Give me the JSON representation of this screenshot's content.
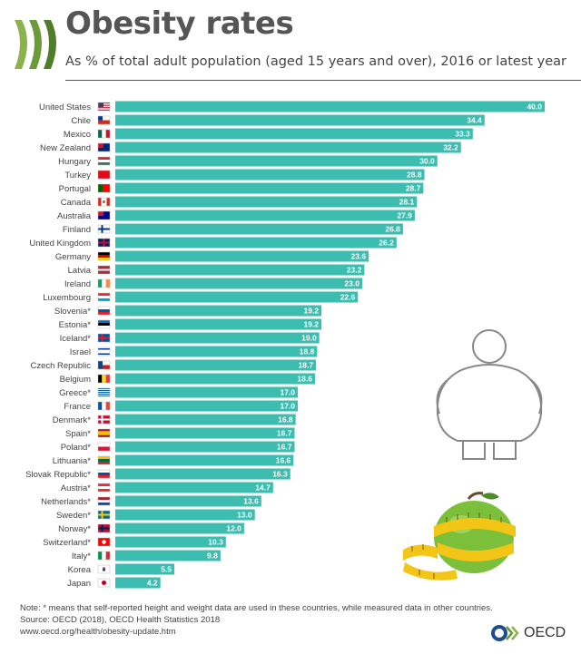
{
  "header": {
    "title": "Obesity rates",
    "subtitle": "As % of total adult population (aged 15 years and over), 2016 or latest year"
  },
  "chart_data": {
    "type": "bar",
    "orientation": "horizontal",
    "title": "Obesity rates",
    "subtitle": "As % of total adult population (aged 15 years and over), 2016 or latest year",
    "xlabel": "",
    "ylabel": "",
    "xlim": [
      0,
      40
    ],
    "grid": false,
    "legend": "none",
    "bar_color": "#3dbcb0",
    "categories": [
      "United States",
      "Chile",
      "Mexico",
      "New Zealand",
      "Hungary",
      "Turkey",
      "Portugal",
      "Canada",
      "Australia",
      "Finland",
      "United Kingdom",
      "Germany",
      "Latvia",
      "Ireland",
      "Luxembourg",
      "Slovenia*",
      "Estonia*",
      "Iceland*",
      "Israel",
      "Czech Republic",
      "Belgium",
      "Greece*",
      "France",
      "Denmark*",
      "Spain*",
      "Poland*",
      "Lithuania*",
      "Slovak Republic*",
      "Austria*",
      "Netherlands*",
      "Sweden*",
      "Norway*",
      "Switzerland*",
      "Italy*",
      "Korea",
      "Japan"
    ],
    "values": [
      40.0,
      34.4,
      33.3,
      32.2,
      30.0,
      28.8,
      28.7,
      28.1,
      27.9,
      26.8,
      26.2,
      23.6,
      23.2,
      23.0,
      22.6,
      19.2,
      19.2,
      19.0,
      18.8,
      18.7,
      18.6,
      17.0,
      17.0,
      16.8,
      16.7,
      16.7,
      16.6,
      16.3,
      14.7,
      13.6,
      13.0,
      12.0,
      10.3,
      9.8,
      5.5,
      4.2
    ],
    "value_labels": [
      "40.0",
      "34.4",
      "33.3",
      "32.2",
      "30.0",
      "28.8",
      "28.7",
      "28.1",
      "27.9",
      "26.8",
      "26.2",
      "23.6",
      "23.2",
      "23.0",
      "22.6",
      "19.2",
      "19.2",
      "19.0",
      "18.8",
      "18.7",
      "18.6",
      "17.0",
      "17.0",
      "16.8",
      "16.7",
      "16.7",
      "16.6",
      "16.3",
      "14.7",
      "13.6",
      "13.0",
      "12.0",
      "10.3",
      "9.8",
      "5.5",
      "4.2"
    ]
  },
  "flags": [
    "flag-us-icon",
    "flag-cl-icon",
    "flag-mx-icon",
    "flag-nz-icon",
    "flag-hu-icon",
    "flag-tr-icon",
    "flag-pt-icon",
    "flag-ca-icon",
    "flag-au-icon",
    "flag-fi-icon",
    "flag-gb-icon",
    "flag-de-icon",
    "flag-lv-icon",
    "flag-ie-icon",
    "flag-lu-icon",
    "flag-si-icon",
    "flag-ee-icon",
    "flag-is-icon",
    "flag-il-icon",
    "flag-cz-icon",
    "flag-be-icon",
    "flag-gr-icon",
    "flag-fr-icon",
    "flag-dk-icon",
    "flag-es-icon",
    "flag-pl-icon",
    "flag-lt-icon",
    "flag-sk-icon",
    "flag-at-icon",
    "flag-nl-icon",
    "flag-se-icon",
    "flag-no-icon",
    "flag-ch-icon",
    "flag-it-icon",
    "flag-kr-icon",
    "flag-jp-icon"
  ],
  "footer": {
    "note": "Note: * means that self-reported height and weight data are used in these countries, while measured data in other countries.",
    "source": "Source: OECD (2018), OECD Health Statistics 2018",
    "url": "www.oecd.org/health/obesity-update.htm",
    "brand": "OECD"
  },
  "colors": {
    "bar": "#3dbcb0",
    "logo_green": "#6a9a3a",
    "oecd_blue": "#1f4e8c"
  },
  "icons": {
    "logo": "oecd-chevrons-icon",
    "person": "obese-person-outline-icon",
    "apple": "apple-measuring-tape-icon",
    "brand_logo": "oecd-logo-icon"
  }
}
